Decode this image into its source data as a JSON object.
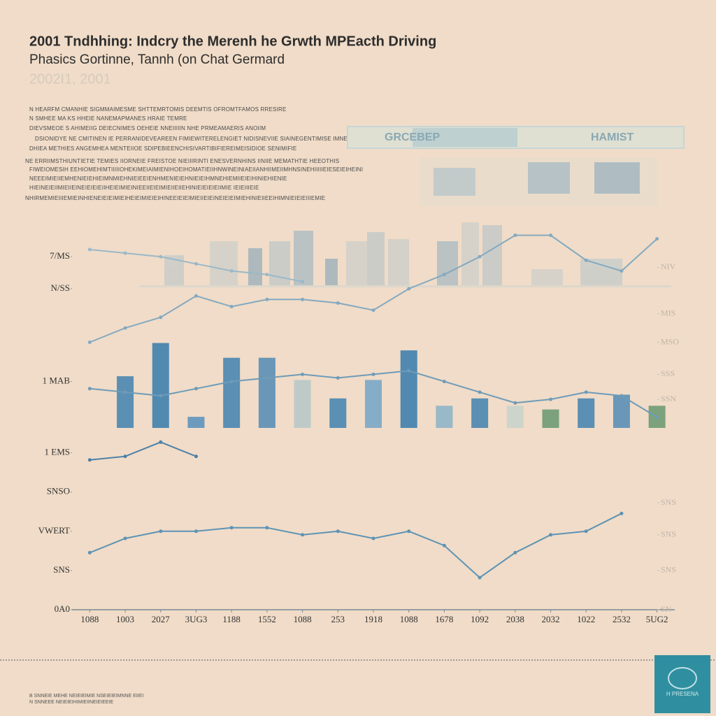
{
  "header": {
    "title": "2001 Tndhhing: Indcry the Merenh he Grwth MPEacth Driving",
    "subtitle": "Phasics Gortinne, Tannh (on Chat Germard",
    "years": "2002I1, 2001",
    "notes": [
      "N HEARFM CMANHIE SIGMMAIMESME SHTTEMRTOMIS DEEMTIS OFROMTFAMOS RRESIRE",
      "N SMHEE MA KS HHEIE NANEMAPMANES HRAIE TEMRE",
      "DIEVSMEOE S AHIMEIIG DEIECNIMES OEHEIE NNEIIIIIN NHE PRMEAMAERIS ANOIIM",
      "DSIONIDYE NE CMITINEN IE PERRANIDEVEAREEN FIMIEWITERELENGIET NIDISNEVIIE SIAINEGENTIMISE IMNEPEVOH AE",
      "DHIEA METHIES ANGEMHEA MENTEIIOE SDIPEBIEENCHISIVARTIBIFIEREIMEISIDIOE SENIMIFIE",
      "NE ERRIIMSTHIUNTIETIE TEMIES IIORNEIE FREISTOE NIEIIIRINTI ENESVERNHINS IINIIE MEMATHTIE HEEOTHIS",
      "FIWEIOMESIH EEHIOMEHIMTIIIIIOHEKIMEIAIMIENIHOEIHOMATIEIIHNWINEINIAEIIANHIIMEIIMHNSINEHIIIIIEIESEIEIHEINI",
      "NEEEIMIEIIEMHENIEIEHIEIMNMIEHNIEIEEIENHMENIEIEHNIEIEIHMNEHIEMIIEIEIHINIEHIENIE",
      "HIEINEIEIIMIEIIEINEIEIEIEIIHEIEIMIEINIEEIIEIEIMIEIIEIIEHINIEIEIEIEIIMIE IEIEIIIEIE",
      "NHIRMEMIEIIIEMIEINHIENEIEIEIMIEIHEIEIMIEIEIHINEEIEIEIMIEIIEIEINEIEIEIMIEHINIEIIEEIHIMNIEIEIEIIIEMIE"
    ],
    "panel": {
      "left": "GRCEBEP",
      "right": "HAMIST"
    },
    "footer": [
      "B SNNEIE MEHE NEIEIEIMIE NSEIEIEIMNNE EIIEI",
      "N SNNEEE NEIEIEIHIMIEIINEIEIEEIE"
    ],
    "logo": "H PRESENA"
  },
  "chart_data": [
    {
      "type": "line",
      "categories": [
        "1088",
        "1003",
        "2027",
        "3UG3",
        "1188",
        "1552",
        "1088",
        "253",
        "1918",
        "1088",
        "1678",
        "1092",
        "2038",
        "2032",
        "1022",
        "2532",
        "5UG2"
      ],
      "ylim": [
        0,
        110
      ],
      "yticks": [
        {
          "value": 99,
          "label": "7/MS"
        },
        {
          "value": 90,
          "label": "N/SS"
        },
        {
          "value": 64,
          "label": "1 MAB"
        },
        {
          "value": 44,
          "label": "1 EMS"
        },
        {
          "value": 33,
          "label": "SNSO"
        },
        {
          "value": 22,
          "label": "VWERT"
        },
        {
          "value": 11,
          "label": "SNS"
        },
        {
          "value": 0,
          "label": "0A0"
        }
      ],
      "y2lim": [
        0,
        110
      ],
      "y2ticks": [
        {
          "value": 96,
          "label": "NIV"
        },
        {
          "value": 83,
          "label": "MIS"
        },
        {
          "value": 75,
          "label": "MSO"
        },
        {
          "value": 66,
          "label": "SSS"
        },
        {
          "value": 59,
          "label": "SSN"
        },
        {
          "value": 30,
          "label": "SNS"
        },
        {
          "value": 21,
          "label": "SNS"
        },
        {
          "value": 11,
          "label": "SNS"
        },
        {
          "value": 0,
          "label": "SN"
        }
      ],
      "series": [
        {
          "color": "#9bb8c8",
          "values": [
            101,
            100,
            99,
            97,
            95,
            94,
            92,
            null,
            null,
            null,
            null,
            null,
            null,
            null,
            null,
            null,
            null
          ]
        },
        {
          "color": "#84a9c0",
          "values": [
            75,
            79,
            82,
            88,
            85,
            87,
            87,
            86,
            84,
            90,
            94,
            99,
            105,
            105,
            98,
            95,
            104
          ]
        },
        {
          "color": "#6f9bb8",
          "values": [
            62,
            61,
            60,
            62,
            64,
            65,
            66,
            65,
            66,
            67,
            64,
            61,
            58,
            59,
            61,
            60,
            54
          ]
        },
        {
          "color": "#4c80a8",
          "values": [
            42,
            43,
            47,
            43,
            null,
            null,
            null,
            null,
            null,
            null,
            null,
            null,
            null,
            null,
            null,
            null,
            null
          ]
        },
        {
          "color": "#5d93b5",
          "values": [
            16,
            20,
            22,
            22,
            23,
            23,
            21,
            22,
            20,
            22,
            18,
            9,
            16,
            21,
            22,
            27,
            null
          ]
        }
      ]
    },
    {
      "type": "bar",
      "ylim": [
        0,
        25
      ],
      "values": [
        null,
        14,
        23,
        3,
        19,
        19,
        13,
        8,
        13,
        21,
        6,
        8,
        6,
        5,
        8,
        9,
        6
      ],
      "colors": [
        "#4a86b0",
        "#4a86b0",
        "#3f7fae",
        "#5d93bb",
        "#4a86b0",
        "#5b8fb5",
        "#b8c8c8",
        "#4a86b0",
        "#7aa7c6",
        "#3f7fae",
        "#8fb4c8",
        "#4a86b0",
        "#c9d3cc",
        "#6e9a74",
        "#4a86b0",
        "#5b8fb5",
        "#6e9a74"
      ]
    }
  ]
}
